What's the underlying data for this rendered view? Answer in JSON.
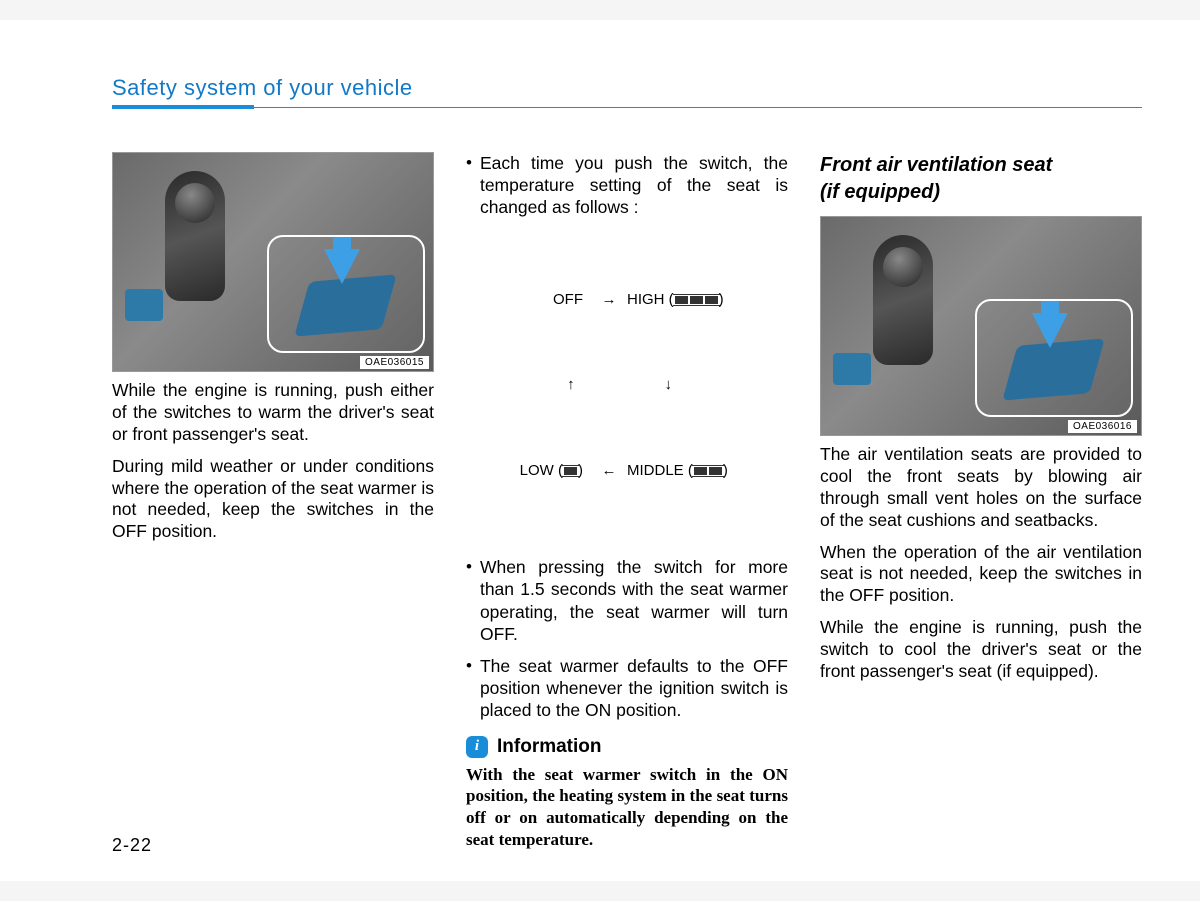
{
  "header": {
    "title": "Safety system of your vehicle"
  },
  "page_number": "2-22",
  "col1": {
    "figure_caption": "OAE036015",
    "p1": "While the engine is running, push either of the switches to warm the driver's seat or front passenger's seat.",
    "p2": "During mild weather or under conditions where the operation of the seat warmer is not needed, keep the switches in the OFF position."
  },
  "col2": {
    "b1": "Each time you push the switch, the temperature setting of the seat is changed as follows :",
    "cycle": {
      "off": "OFF",
      "high": "HIGH (",
      "low": "LOW (",
      "middle": "MIDDLE (",
      "close": ")"
    },
    "b2": "When pressing the switch for more than 1.5 seconds with the seat warmer operating, the seat warmer will turn OFF.",
    "b3": "The seat warmer defaults to the OFF position whenever the ignition switch is placed to the ON position.",
    "info_title": "Information",
    "info_text": "With the seat warmer switch in the ON position, the heating system in the seat turns off or on automatically depending on the seat temperature."
  },
  "col3": {
    "heading1": "Front air ventilation seat",
    "heading2": "(if equipped)",
    "figure_caption": "OAE036016",
    "p1": "The air ventilation seats are provided to cool the front seats by blowing air through small vent holes on the surface of the seat cushions and seatbacks.",
    "p2": "When the operation of the air ventilation seat is not needed, keep the switches in the OFF position.",
    "p3": "While the engine is running, push the switch to cool the driver's seat or the front passenger's seat (if equipped)."
  },
  "colors": {
    "accent": "#1a8dd8"
  }
}
